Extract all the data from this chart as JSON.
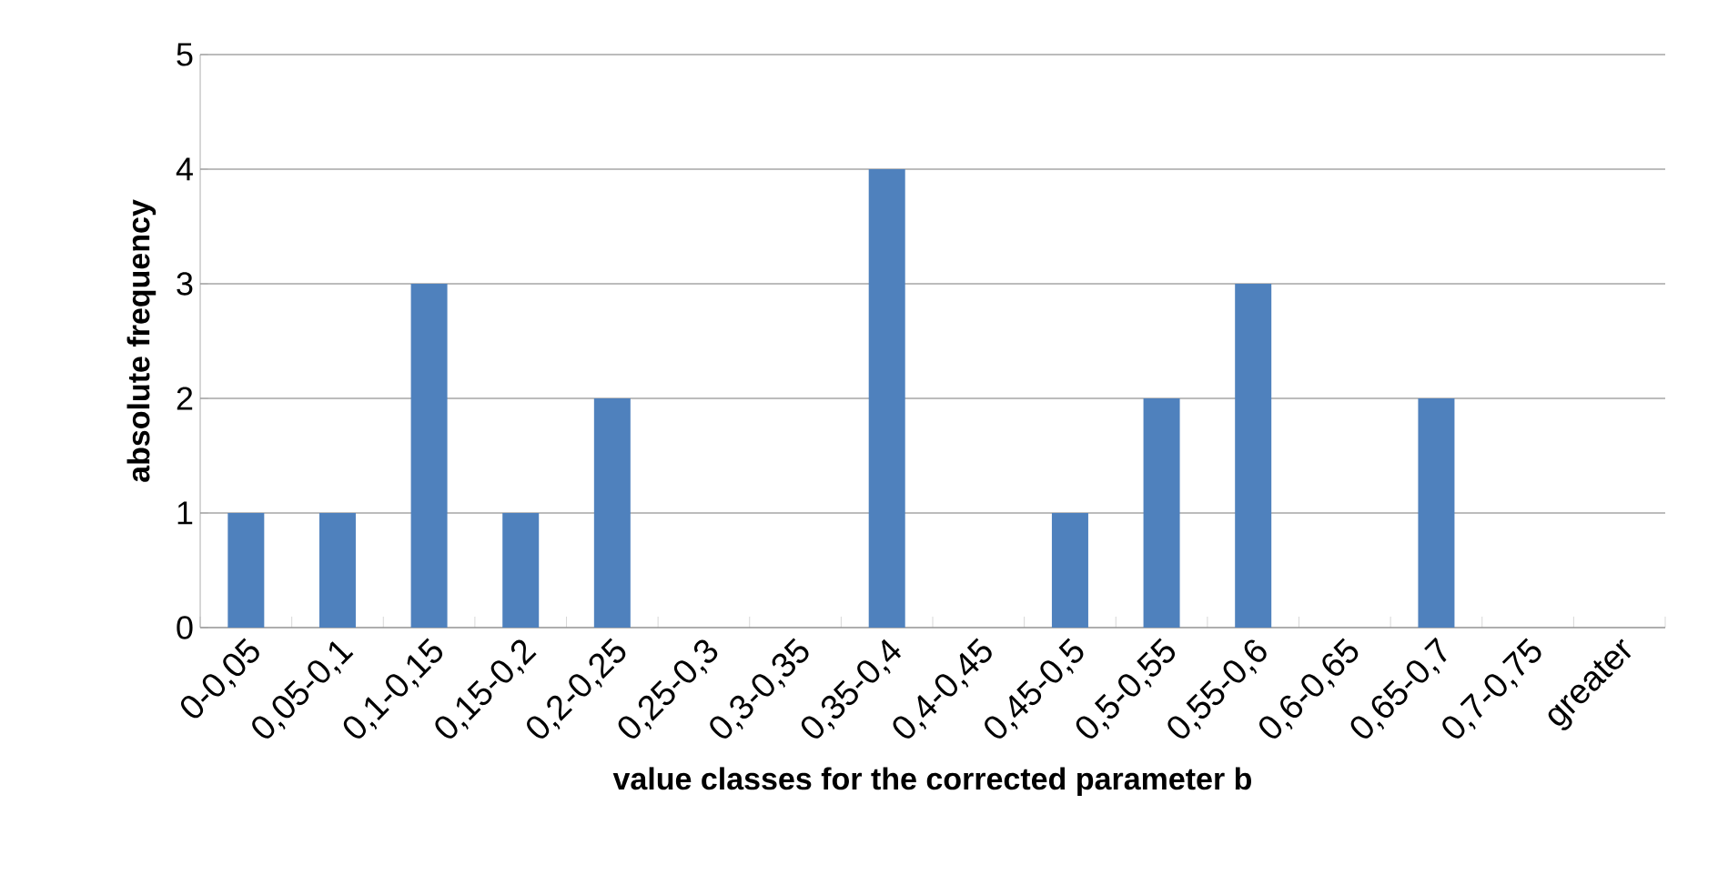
{
  "chart_data": {
    "type": "bar",
    "xlabel": "value classes for the corrected parameter b",
    "ylabel": "absolute frequency",
    "categories": [
      "0-0,05",
      "0,05-0,1",
      "0,1-0,15",
      "0,15-0,2",
      "0,2-0,25",
      "0,25-0,3",
      "0,3-0,35",
      "0,35-0,4",
      "0,4-0,45",
      "0,45-0,5",
      "0,5-0,55",
      "0,55-0,6",
      "0,6-0,65",
      "0,65-0,7",
      "0,7-0,75",
      "greater"
    ],
    "values": [
      1,
      1,
      3,
      1,
      2,
      0,
      0,
      4,
      0,
      1,
      2,
      3,
      0,
      2,
      0,
      0
    ],
    "color": "#4f81bd",
    "ylim": [
      0,
      5
    ],
    "yticks": [
      0,
      1,
      2,
      3,
      4,
      5
    ],
    "grid": "y"
  }
}
